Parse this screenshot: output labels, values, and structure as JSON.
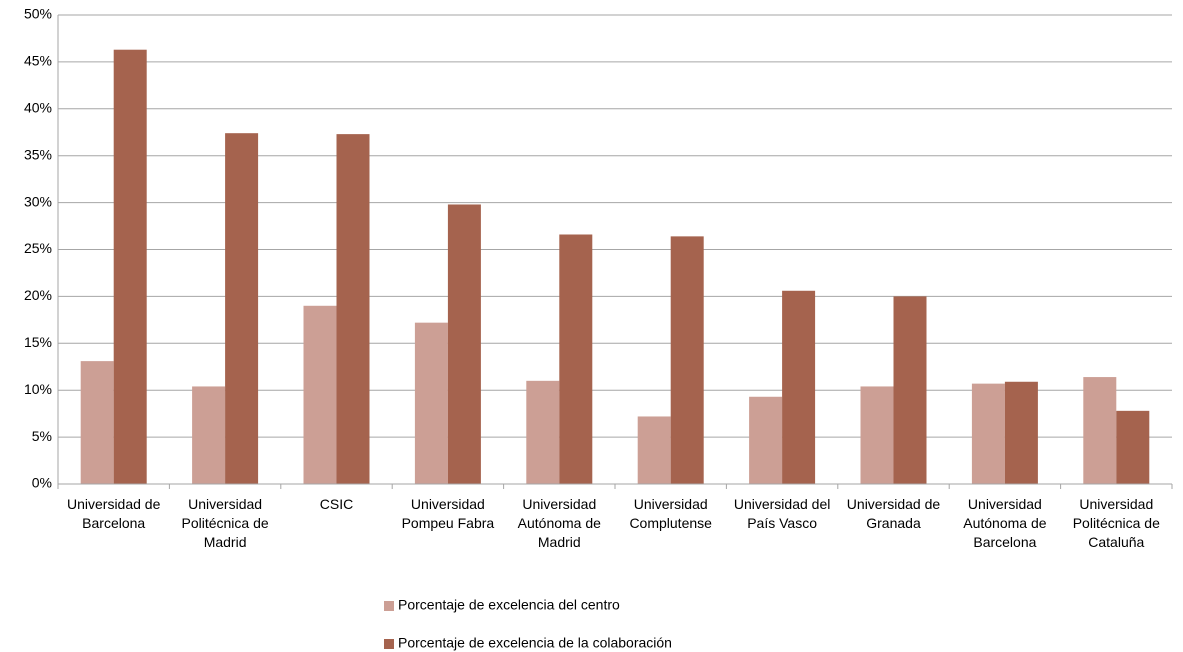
{
  "chart_data": {
    "type": "bar",
    "categories": [
      "Universidad de Barcelona",
      "Universidad Politécnica de Madrid",
      "CSIC",
      "Universidad Pompeu Fabra",
      "Universidad Autónoma de Madrid",
      "Universidad Complutense",
      "Universidad del País Vasco",
      "Universidad de Granada",
      "Universidad Autónoma de Barcelona",
      "Universidad Politécnica de Cataluña"
    ],
    "series": [
      {
        "name": "Porcentaje de excelencia del centro",
        "color": "#cc9f95",
        "values": [
          13.1,
          10.4,
          19.0,
          17.2,
          11.0,
          7.2,
          9.3,
          10.4,
          10.7,
          11.4
        ]
      },
      {
        "name": "Porcentaje de excelencia de la colaboración",
        "color": "#a5634e",
        "values": [
          46.3,
          37.4,
          37.3,
          29.8,
          26.6,
          26.4,
          20.6,
          20.0,
          10.9,
          7.8
        ]
      }
    ],
    "ylim": [
      0,
      50
    ],
    "yticks": [
      {
        "value": 0,
        "label": "0%"
      },
      {
        "value": 5,
        "label": "5%"
      },
      {
        "value": 10,
        "label": "10%"
      },
      {
        "value": 15,
        "label": "15%"
      },
      {
        "value": 20,
        "label": "20%"
      },
      {
        "value": 25,
        "label": "25%"
      },
      {
        "value": 30,
        "label": "30%"
      },
      {
        "value": 35,
        "label": "35%"
      },
      {
        "value": 40,
        "label": "40%"
      },
      {
        "value": 45,
        "label": "45%"
      },
      {
        "value": 50,
        "label": "50%"
      }
    ],
    "grid": true,
    "legend": "bottom"
  }
}
